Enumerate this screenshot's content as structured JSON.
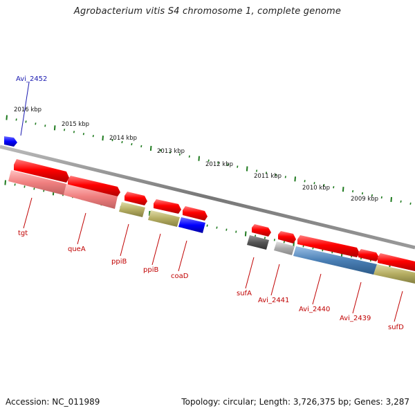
{
  "title": "Agrobacterium vitis S4 chromosome 1, complete genome",
  "footer": {
    "accession": "Accession: NC_011989",
    "summary": "Topology: circular; Length: 3,726,375 bp; Genes: 3,287"
  },
  "scale_labels": [
    "2016 kbp",
    "2015 kbp",
    "2014 kbp",
    "2013 kbp",
    "2012 kbp",
    "2011 kbp",
    "2010 kbp",
    "2009 kbp"
  ],
  "genes": [
    {
      "name": "Avi_2452",
      "color": "#1a1ab0"
    },
    {
      "name": "tgt",
      "color": "#c00000"
    },
    {
      "name": "queA",
      "color": "#c00000"
    },
    {
      "name": "ppiB",
      "color": "#c00000"
    },
    {
      "name": "ppiB",
      "color": "#c00000"
    },
    {
      "name": "coaD",
      "color": "#c00000"
    },
    {
      "name": "sufA",
      "color": "#c00000"
    },
    {
      "name": "Avi_2441",
      "color": "#c00000"
    },
    {
      "name": "Avi_2440",
      "color": "#c00000"
    },
    {
      "name": "Avi_2439",
      "color": "#c00000"
    },
    {
      "name": "sufD",
      "color": "#c00000"
    }
  ],
  "colors": {
    "backbone": "#808080",
    "tick": "#1e7a1e",
    "cds": "#ff0000",
    "rna": "#f08080",
    "olive": "#b5ad62",
    "blue": "#0000ff",
    "steel": "#4a7fb5",
    "dark": "#555555",
    "light": "#aaaaaa"
  }
}
